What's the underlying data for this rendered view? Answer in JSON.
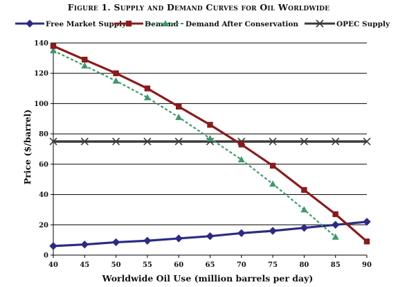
{
  "chart_data": {
    "type": "line",
    "title": "Figure 1. Supply and Demand Curves for Oil Worldwide",
    "xlabel": "Worldwide Oil Use (million barrels per day)",
    "ylabel": "Price ($/barrel)",
    "xlim": [
      40,
      90
    ],
    "ylim": [
      0,
      140
    ],
    "x_ticks": [
      40,
      45,
      50,
      55,
      60,
      65,
      70,
      75,
      80,
      85,
      90
    ],
    "y_ticks": [
      0,
      20,
      40,
      60,
      80,
      100,
      120,
      140
    ],
    "grid": "horizontal",
    "legend_position": "top",
    "series": [
      {
        "name": "Free Market Supply",
        "color": "#2b2b86",
        "marker": "diamond",
        "line_style": "solid",
        "x": [
          40,
          45,
          50,
          55,
          60,
          65,
          70,
          75,
          80,
          85,
          90
        ],
        "y": [
          6,
          7,
          8.5,
          9.5,
          11,
          12.5,
          14.5,
          16,
          18,
          20,
          22
        ]
      },
      {
        "name": "Demand",
        "color": "#8b1a1a",
        "marker": "square",
        "line_style": "solid",
        "x": [
          40,
          45,
          50,
          55,
          60,
          65,
          70,
          75,
          80,
          85,
          90
        ],
        "y": [
          138,
          129,
          120,
          110,
          98,
          86,
          73,
          59,
          43,
          27,
          9
        ]
      },
      {
        "name": "Demand After Conservation",
        "color": "#3a9a6a",
        "marker": "triangle",
        "line_style": "dashed",
        "x": [
          40,
          45,
          50,
          55,
          60,
          65,
          70,
          75,
          80,
          85
        ],
        "y": [
          135,
          125,
          115,
          104,
          91,
          77,
          63,
          47,
          30,
          12
        ]
      },
      {
        "name": "OPEC Supply",
        "color": "#3a3a3a",
        "marker": "x",
        "line_style": "solid",
        "x": [
          40,
          45,
          50,
          55,
          60,
          65,
          70,
          75,
          80,
          85,
          90
        ],
        "y": [
          75,
          75,
          75,
          75,
          75,
          75,
          75,
          75,
          75,
          75,
          75
        ]
      }
    ]
  }
}
